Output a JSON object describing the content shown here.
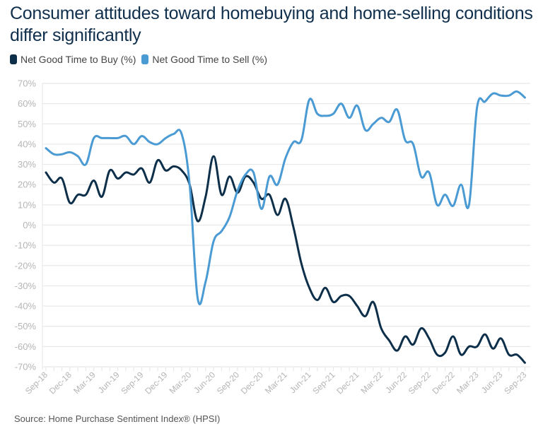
{
  "chart_data": {
    "type": "line",
    "title": "Consumer attitudes toward homebuying and home-selling conditions differ significantly",
    "xlabel": "",
    "ylabel": "",
    "ylim": [
      -70,
      70
    ],
    "yticks": [
      70,
      60,
      50,
      40,
      30,
      20,
      10,
      0,
      -10,
      -20,
      -30,
      -40,
      -50,
      -60,
      -70
    ],
    "ytick_format": "percent",
    "grid": true,
    "legend_position": "top-left",
    "x": [
      "Sep-18",
      "Oct-18",
      "Nov-18",
      "Dec-18",
      "Jan-19",
      "Feb-19",
      "Mar-19",
      "Apr-19",
      "May-19",
      "Jun-19",
      "Jul-19",
      "Aug-19",
      "Sep-19",
      "Oct-19",
      "Nov-19",
      "Dec-19",
      "Jan-20",
      "Feb-20",
      "Mar-20",
      "Apr-20",
      "May-20",
      "Jun-20",
      "Jul-20",
      "Aug-20",
      "Sep-20",
      "Oct-20",
      "Nov-20",
      "Dec-20",
      "Jan-21",
      "Feb-21",
      "Mar-21",
      "Apr-21",
      "May-21",
      "Jun-21",
      "Jul-21",
      "Aug-21",
      "Sep-21",
      "Oct-21",
      "Nov-21",
      "Dec-21",
      "Jan-22",
      "Feb-22",
      "Mar-22",
      "Apr-22",
      "May-22",
      "Jun-22",
      "Jul-22",
      "Aug-22",
      "Sep-22",
      "Oct-22",
      "Nov-22",
      "Dec-22",
      "Jan-23",
      "Feb-23",
      "Mar-23",
      "Apr-23",
      "May-23",
      "Jun-23",
      "Jul-23",
      "Aug-23",
      "Sep-23"
    ],
    "xtick_labels": [
      "Sep-18",
      "Dec-18",
      "Mar-19",
      "Jun-19",
      "Sep-19",
      "Dec-19",
      "Mar-20",
      "Jun-20",
      "Sep-20",
      "Dec-20",
      "Mar-21",
      "Jun-21",
      "Sep-21",
      "Dec-21",
      "Mar-22",
      "Jun-22",
      "Sep-22",
      "Dec-22",
      "Mar-23",
      "Jun-23",
      "Sep-23"
    ],
    "series": [
      {
        "name": "Net Good Time to Buy (%)",
        "color": "#0d2f4a",
        "values": [
          26,
          21,
          23,
          11,
          15,
          15,
          22,
          14,
          27,
          23,
          26,
          25,
          28,
          21,
          32,
          27,
          29,
          27,
          20,
          2,
          14,
          34,
          15,
          24,
          16,
          24,
          21,
          13,
          15,
          5,
          13,
          -1,
          -19,
          -31,
          -37,
          -31,
          -38,
          -35,
          -35,
          -40,
          -45,
          -38,
          -51,
          -57,
          -62,
          -55,
          -59,
          -51,
          -56,
          -64,
          -63,
          -55,
          -64,
          -60,
          -60,
          -54,
          -61,
          -56,
          -64,
          -64,
          -68
        ]
      },
      {
        "name": "Net Good Time to Sell (%)",
        "color": "#4a9ad4",
        "values": [
          38,
          35,
          35,
          36,
          34,
          30,
          43,
          43,
          43,
          43,
          44,
          40,
          44,
          41,
          40,
          43,
          45,
          45,
          20,
          -36,
          -28,
          -8,
          -3,
          4,
          17,
          25,
          26,
          8,
          24,
          20,
          33,
          41,
          42,
          62,
          55,
          54,
          55,
          60,
          53,
          59,
          47,
          50,
          53,
          51,
          57,
          42,
          40,
          24,
          26,
          10,
          15,
          9.5,
          20,
          10,
          58,
          61,
          65,
          64,
          64,
          66,
          63
        ]
      }
    ],
    "source": "Source: Home Purchase Sentiment Index® (HPSI)"
  },
  "colors": {
    "title": "#0f2f4c",
    "grid": "#e8e8e8",
    "axis_text": "#b5b5b5"
  }
}
